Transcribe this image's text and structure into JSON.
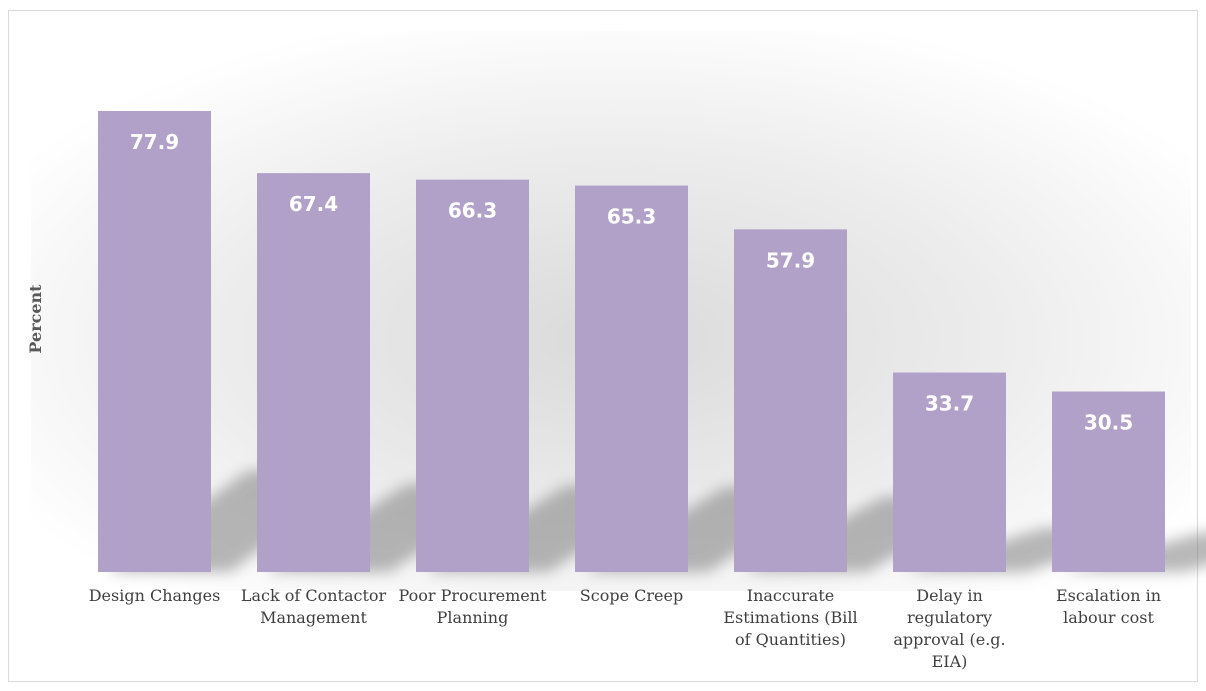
{
  "chart_data": {
    "type": "bar",
    "title": "",
    "xlabel": "",
    "ylabel": "Percent",
    "ylim": [
      0,
      90
    ],
    "grid": false,
    "legend": "none",
    "bar_color": "#b1a0c7",
    "label_color": "#ffffff",
    "categories": [
      [
        "Design Changes"
      ],
      [
        "Lack of Contactor",
        "Management"
      ],
      [
        "Poor Procurement",
        "Planning"
      ],
      [
        "Scope Creep"
      ],
      [
        "Inaccurate",
        "Estimations (Bill",
        "of Quantities)"
      ],
      [
        "Delay in",
        "regulatory",
        "approval (e.g.",
        "EIA)"
      ],
      [
        "Escalation in",
        "labour cost"
      ]
    ],
    "values": [
      77.9,
      67.4,
      66.3,
      65.3,
      57.9,
      33.7,
      30.5
    ],
    "data_labels": [
      "77.9",
      "67.4",
      "66.3",
      "65.3",
      "57.9",
      "33.7",
      "30.5"
    ]
  }
}
